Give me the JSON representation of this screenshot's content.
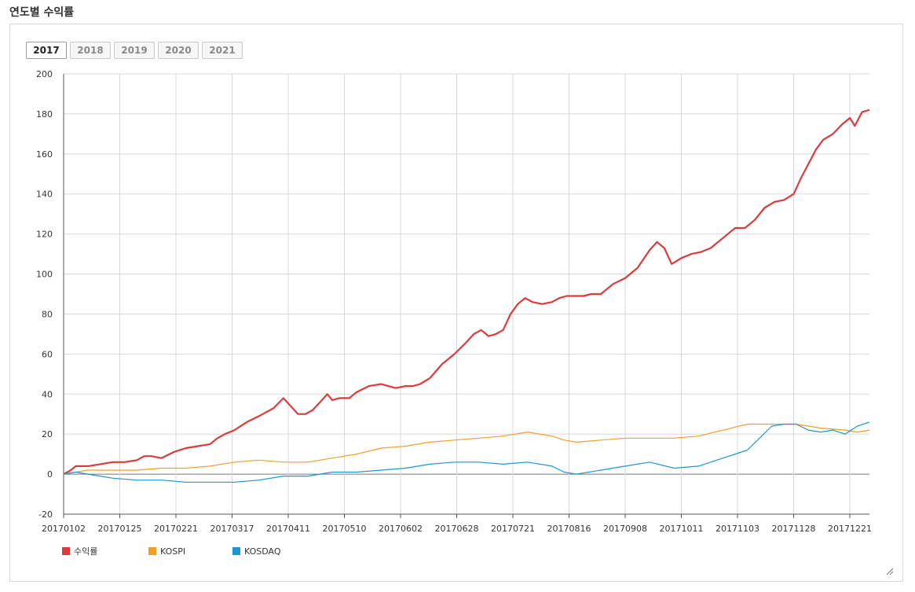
{
  "page": {
    "title": "연도별 수익률"
  },
  "year_tabs": [
    {
      "label": "2017",
      "active": true
    },
    {
      "label": "2018",
      "active": false
    },
    {
      "label": "2019",
      "active": false
    },
    {
      "label": "2020",
      "active": false
    },
    {
      "label": "2021",
      "active": false
    }
  ],
  "colors": {
    "return": "#dd3b3b",
    "kospi": "#f0a02a",
    "kosdaq": "#1f95d0",
    "grid": "#d8d8d8",
    "zero": "#777777"
  },
  "chart_data": {
    "type": "line",
    "title": "",
    "xlabel": "",
    "ylabel": "",
    "ylim": [
      -20,
      200
    ],
    "yticks": [
      -20,
      0,
      20,
      40,
      60,
      80,
      100,
      120,
      140,
      160,
      180,
      200
    ],
    "grid": true,
    "legend": "bottom-left",
    "x_ticks": [
      "20170102",
      "20170125",
      "20170221",
      "20170317",
      "20170411",
      "20170510",
      "20170602",
      "20170628",
      "20170721",
      "20170816",
      "20170908",
      "20171011",
      "20171103",
      "20171128",
      "20171221"
    ],
    "series": [
      {
        "name": "수익률",
        "color": "#dd3b3b",
        "points": [
          [
            0,
            0
          ],
          [
            3,
            2
          ],
          [
            5,
            4
          ],
          [
            10,
            4
          ],
          [
            15,
            5
          ],
          [
            20,
            6
          ],
          [
            25,
            6
          ],
          [
            30,
            7
          ],
          [
            33,
            9
          ],
          [
            36,
            9
          ],
          [
            40,
            8
          ],
          [
            45,
            11
          ],
          [
            50,
            13
          ],
          [
            55,
            14
          ],
          [
            60,
            15
          ],
          [
            63,
            18
          ],
          [
            66,
            20
          ],
          [
            70,
            22
          ],
          [
            75,
            26
          ],
          [
            80,
            29
          ],
          [
            83,
            31
          ],
          [
            86,
            33
          ],
          [
            90,
            38
          ],
          [
            93,
            34
          ],
          [
            96,
            30
          ],
          [
            99,
            30
          ],
          [
            102,
            32
          ],
          [
            105,
            36
          ],
          [
            108,
            40
          ],
          [
            110,
            37
          ],
          [
            113,
            38
          ],
          [
            117,
            38
          ],
          [
            120,
            41
          ],
          [
            125,
            44
          ],
          [
            130,
            45
          ],
          [
            133,
            44
          ],
          [
            136,
            43
          ],
          [
            140,
            44
          ],
          [
            143,
            44
          ],
          [
            146,
            45
          ],
          [
            150,
            48
          ],
          [
            155,
            55
          ],
          [
            160,
            60
          ],
          [
            165,
            66
          ],
          [
            168,
            70
          ],
          [
            171,
            72
          ],
          [
            174,
            69
          ],
          [
            177,
            70
          ],
          [
            180,
            72
          ],
          [
            183,
            80
          ],
          [
            186,
            85
          ],
          [
            189,
            88
          ],
          [
            192,
            86
          ],
          [
            196,
            85
          ],
          [
            200,
            86
          ],
          [
            203,
            88
          ],
          [
            206,
            89
          ],
          [
            210,
            89
          ],
          [
            213,
            89
          ],
          [
            216,
            90
          ],
          [
            220,
            90
          ],
          [
            225,
            95
          ],
          [
            230,
            98
          ],
          [
            235,
            103
          ],
          [
            240,
            112
          ],
          [
            243,
            116
          ],
          [
            246,
            113
          ],
          [
            249,
            105
          ],
          [
            253,
            108
          ],
          [
            257,
            110
          ],
          [
            261,
            111
          ],
          [
            265,
            113
          ],
          [
            270,
            118
          ],
          [
            275,
            123
          ],
          [
            279,
            123
          ],
          [
            283,
            127
          ],
          [
            287,
            133
          ],
          [
            291,
            136
          ],
          [
            295,
            137
          ],
          [
            299,
            140
          ],
          [
            302,
            148
          ],
          [
            305,
            155
          ],
          [
            308,
            162
          ],
          [
            311,
            167
          ],
          [
            315,
            170
          ],
          [
            319,
            175
          ],
          [
            322,
            178
          ],
          [
            324,
            174
          ],
          [
            327,
            181
          ],
          [
            330,
            182
          ]
        ]
      },
      {
        "name": "KOSPI",
        "color": "#f0a02a",
        "points": [
          [
            0,
            0
          ],
          [
            5,
            1
          ],
          [
            10,
            2
          ],
          [
            20,
            2
          ],
          [
            30,
            2
          ],
          [
            40,
            3
          ],
          [
            50,
            3
          ],
          [
            60,
            4
          ],
          [
            70,
            6
          ],
          [
            80,
            7
          ],
          [
            90,
            6
          ],
          [
            100,
            6
          ],
          [
            110,
            8
          ],
          [
            120,
            10
          ],
          [
            130,
            13
          ],
          [
            140,
            14
          ],
          [
            150,
            16
          ],
          [
            160,
            17
          ],
          [
            170,
            18
          ],
          [
            180,
            19
          ],
          [
            190,
            21
          ],
          [
            200,
            19
          ],
          [
            205,
            17
          ],
          [
            210,
            16
          ],
          [
            220,
            17
          ],
          [
            230,
            18
          ],
          [
            240,
            18
          ],
          [
            250,
            18
          ],
          [
            260,
            19
          ],
          [
            270,
            22
          ],
          [
            280,
            25
          ],
          [
            290,
            25
          ],
          [
            300,
            25
          ],
          [
            310,
            23
          ],
          [
            320,
            22
          ],
          [
            325,
            21
          ],
          [
            330,
            22
          ]
        ]
      },
      {
        "name": "KOSDAQ",
        "color": "#1f95d0",
        "points": [
          [
            0,
            0
          ],
          [
            5,
            1
          ],
          [
            10,
            0
          ],
          [
            20,
            -2
          ],
          [
            30,
            -3
          ],
          [
            40,
            -3
          ],
          [
            50,
            -4
          ],
          [
            60,
            -4
          ],
          [
            70,
            -4
          ],
          [
            80,
            -3
          ],
          [
            90,
            -1
          ],
          [
            100,
            -1
          ],
          [
            110,
            1
          ],
          [
            120,
            1
          ],
          [
            130,
            2
          ],
          [
            140,
            3
          ],
          [
            150,
            5
          ],
          [
            160,
            6
          ],
          [
            170,
            6
          ],
          [
            180,
            5
          ],
          [
            190,
            6
          ],
          [
            200,
            4
          ],
          [
            205,
            1
          ],
          [
            210,
            0
          ],
          [
            220,
            2
          ],
          [
            230,
            4
          ],
          [
            240,
            6
          ],
          [
            250,
            3
          ],
          [
            260,
            4
          ],
          [
            270,
            8
          ],
          [
            280,
            12
          ],
          [
            285,
            18
          ],
          [
            290,
            24
          ],
          [
            295,
            25
          ],
          [
            300,
            25
          ],
          [
            305,
            22
          ],
          [
            310,
            21
          ],
          [
            315,
            22
          ],
          [
            320,
            20
          ],
          [
            325,
            24
          ],
          [
            330,
            26
          ]
        ]
      }
    ]
  }
}
